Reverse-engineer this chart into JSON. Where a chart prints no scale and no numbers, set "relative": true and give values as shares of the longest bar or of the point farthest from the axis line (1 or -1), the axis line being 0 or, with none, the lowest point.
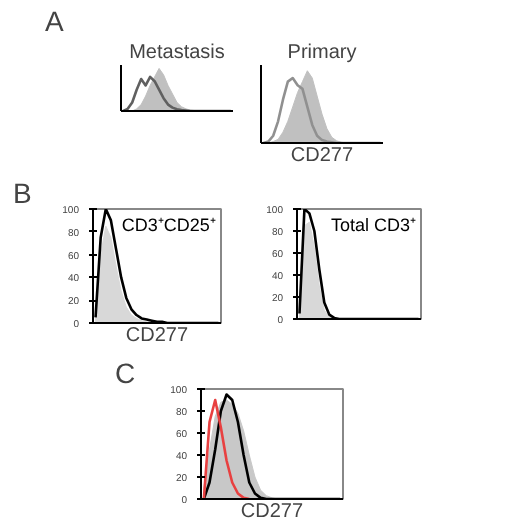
{
  "chart_data": [
    {
      "type": "line",
      "title": "Metastasis",
      "annotations": [
        "A"
      ],
      "relative": true,
      "tick_labels": false,
      "categories": [
        null,
        null,
        null,
        null,
        null,
        null,
        null,
        null,
        null,
        null,
        null,
        null,
        null,
        null,
        null,
        null,
        null,
        null,
        null,
        null,
        null,
        null,
        null,
        null,
        null
      ],
      "series": [
        {
          "type": "area",
          "color": "#c0c0c0",
          "values": [
            0,
            0,
            0,
            0.05,
            0.15,
            0.35,
            0.6,
            0.8,
            1,
            0.85,
            0.6,
            0.4,
            0.2,
            0.1,
            0.05,
            0.02,
            0.01,
            0,
            0,
            0,
            0,
            0,
            0,
            0,
            0
          ]
        },
        {
          "color": "#606060",
          "values": [
            0,
            0.05,
            0.2,
            0.5,
            0.75,
            0.6,
            0.8,
            0.7,
            0.5,
            0.3,
            0.15,
            0.08,
            0.04,
            0.02,
            0.01,
            0,
            0,
            0,
            0,
            0,
            0,
            0,
            0,
            0,
            0
          ]
        }
      ]
    },
    {
      "type": "line",
      "title": "Primary",
      "xlabel": "CD277",
      "relative": true,
      "tick_labels": false,
      "categories": [
        null,
        null,
        null,
        null,
        null,
        null,
        null,
        null,
        null,
        null,
        null,
        null,
        null,
        null,
        null,
        null,
        null,
        null,
        null,
        null,
        null,
        null,
        null,
        null,
        null
      ],
      "series": [
        {
          "type": "area",
          "color": "#c0c0c0",
          "values": [
            0,
            0,
            0.02,
            0.05,
            0.15,
            0.3,
            0.5,
            0.7,
            0.85,
            1,
            0.9,
            0.65,
            0.4,
            0.2,
            0.08,
            0.03,
            0.01,
            0,
            0,
            0,
            0,
            0,
            0,
            0,
            0
          ]
        },
        {
          "color": "#909090",
          "values": [
            0,
            0.02,
            0.1,
            0.3,
            0.6,
            0.85,
            0.9,
            0.8,
            0.75,
            0.5,
            0.25,
            0.1,
            0.04,
            0.02,
            0.01,
            0,
            0,
            0,
            0,
            0,
            0,
            0,
            0,
            0,
            0
          ]
        }
      ]
    },
    {
      "type": "line",
      "title": "CD3⁺CD25⁺",
      "xlabel": "CD277",
      "annotations": [
        "B"
      ],
      "ylim": [
        0,
        100
      ],
      "yticks": [
        0,
        20,
        40,
        60,
        80,
        100
      ],
      "tick_labels": "y",
      "categories": [
        null,
        null,
        null,
        null,
        null,
        null,
        null,
        null,
        null,
        null,
        null,
        null,
        null,
        null,
        null,
        null,
        null,
        null,
        null,
        null,
        null,
        null,
        null,
        null,
        null
      ],
      "series": [
        {
          "type": "area",
          "color": "#d8d8d8",
          "values": [
            5,
            60,
            85,
            75,
            50,
            28,
            14,
            7,
            4,
            2,
            1,
            1,
            0,
            0,
            0,
            0,
            0,
            0,
            0,
            0,
            0,
            0,
            0,
            0,
            0
          ]
        },
        {
          "color": "#000000",
          "values": [
            5,
            75,
            100,
            90,
            65,
            40,
            22,
            12,
            7,
            4,
            3,
            2,
            1,
            1,
            0,
            0,
            0,
            0,
            0,
            0,
            0,
            0,
            0,
            0,
            0
          ]
        }
      ]
    },
    {
      "type": "line",
      "title": "Total CD3⁺",
      "ylim": [
        0,
        100
      ],
      "yticks": [
        0,
        20,
        40,
        60,
        80,
        100
      ],
      "tick_labels": "y",
      "categories": [
        null,
        null,
        null,
        null,
        null,
        null,
        null,
        null,
        null,
        null,
        null,
        null,
        null,
        null,
        null,
        null,
        null,
        null,
        null,
        null,
        null,
        null,
        null,
        null,
        null
      ],
      "series": [
        {
          "type": "area",
          "color": "#d8d8d8",
          "values": [
            3,
            85,
            88,
            65,
            30,
            8,
            2,
            0,
            0,
            0,
            0,
            0,
            0,
            0,
            0,
            0,
            0,
            0,
            0,
            0,
            0,
            0,
            0,
            0,
            0
          ]
        },
        {
          "color": "#000000",
          "values": [
            5,
            100,
            96,
            80,
            45,
            15,
            4,
            1,
            0,
            0,
            0,
            0,
            0,
            0,
            0,
            0,
            0,
            0,
            0,
            0,
            0,
            0,
            0,
            0,
            0
          ]
        }
      ]
    },
    {
      "type": "line",
      "xlabel": "CD277",
      "annotations": [
        "C"
      ],
      "ylim": [
        0,
        100
      ],
      "yticks": [
        0,
        20,
        40,
        60,
        80,
        100
      ],
      "tick_labels": "y",
      "categories": [
        null,
        null,
        null,
        null,
        null,
        null,
        null,
        null,
        null,
        null,
        null,
        null,
        null,
        null,
        null,
        null,
        null,
        null,
        null,
        null,
        null,
        null,
        null,
        null,
        null
      ],
      "series": [
        {
          "type": "area",
          "color": "#c8c8c8",
          "values": [
            10,
            45,
            75,
            88,
            90,
            86,
            78,
            62,
            40,
            20,
            8,
            3,
            1,
            0,
            0,
            0,
            0,
            0,
            0,
            0,
            0,
            0,
            0,
            0,
            0
          ]
        },
        {
          "color": "#000000",
          "values": [
            0,
            15,
            45,
            80,
            95,
            90,
            70,
            40,
            15,
            5,
            1,
            0,
            0,
            0,
            0,
            0,
            0,
            0,
            0,
            0,
            0,
            0,
            0,
            0,
            0
          ]
        },
        {
          "color": "#e84040",
          "values": [
            0,
            70,
            90,
            65,
            35,
            15,
            5,
            1,
            0,
            null,
            null,
            null,
            null,
            null,
            null,
            null,
            null,
            null,
            null,
            null,
            null,
            null,
            null,
            null,
            null
          ]
        }
      ]
    }
  ]
}
